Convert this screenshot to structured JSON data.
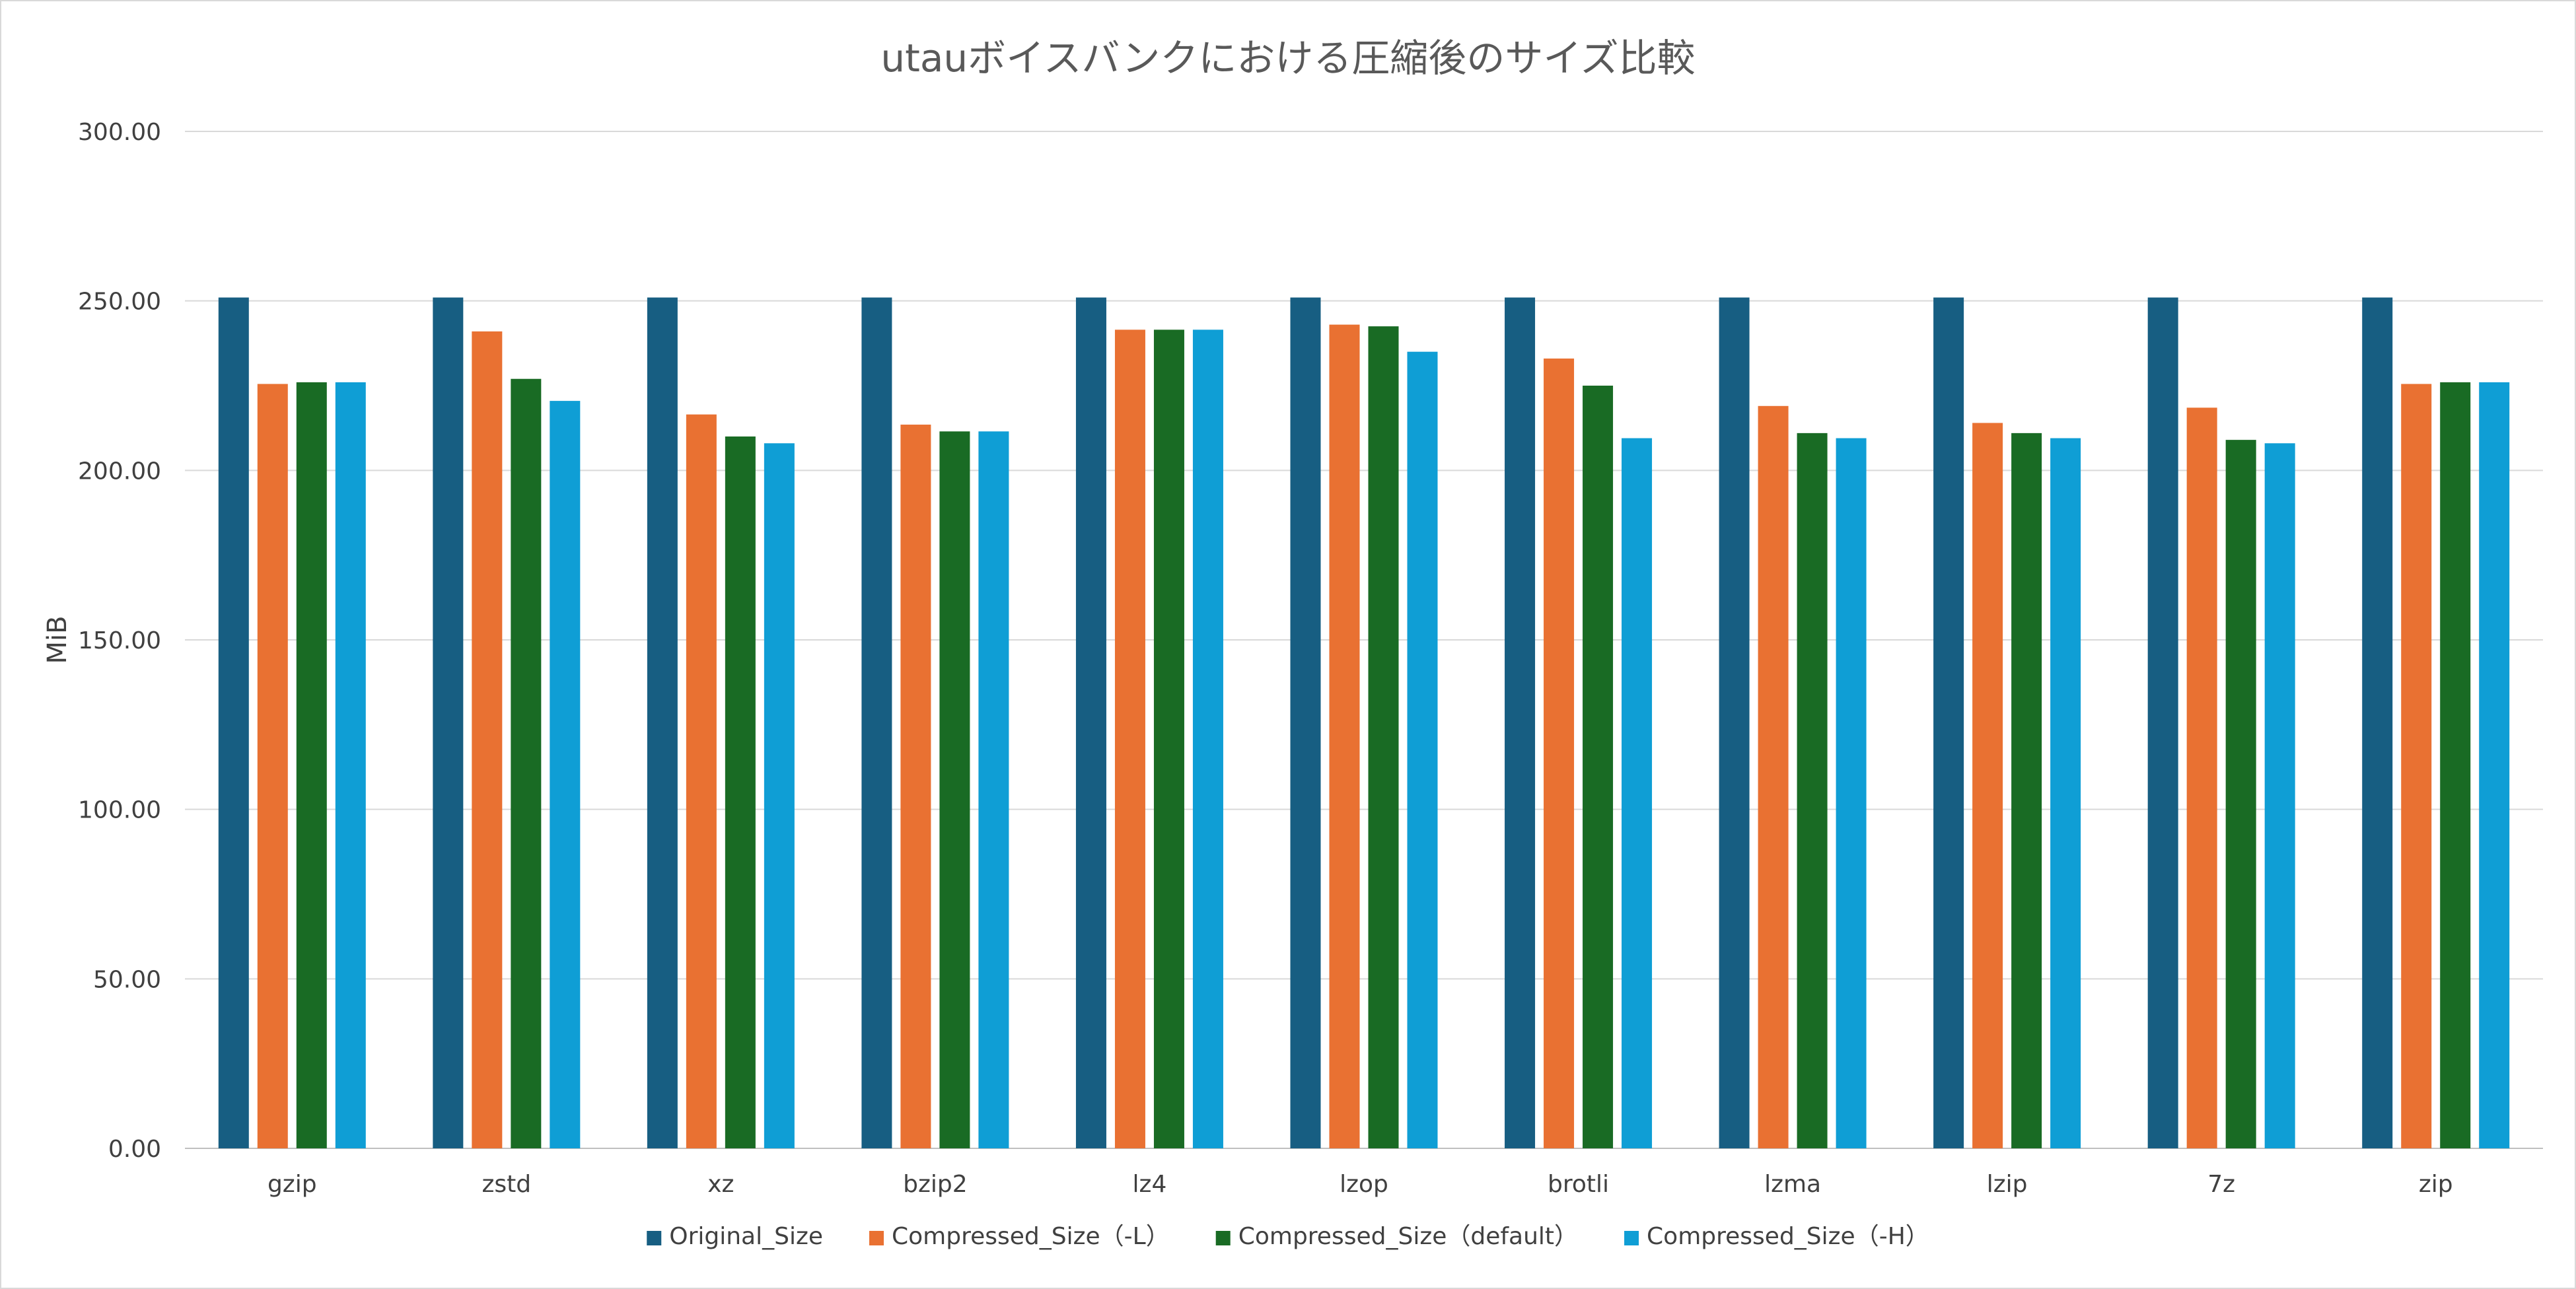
{
  "chart_data": {
    "type": "bar",
    "title": "utauボイスバンクにおける圧縮後のサイズ比較",
    "xlabel": "",
    "ylabel": "MiB",
    "ylim": [
      0,
      300
    ],
    "y_ticks": [
      "0.00",
      "50.00",
      "100.00",
      "150.00",
      "200.00",
      "250.00",
      "300.00"
    ],
    "grid": true,
    "legend_position": "bottom",
    "categories": [
      "gzip",
      "zstd",
      "xz",
      "bzip2",
      "lz4",
      "lzop",
      "brotli",
      "lzma",
      "lzip",
      "7z",
      "zip"
    ],
    "series": [
      {
        "name": "Original_Size",
        "color": "#175e82",
        "values": [
          251,
          251,
          251,
          251,
          251,
          251,
          251,
          251,
          251,
          251,
          251
        ]
      },
      {
        "name": "Compressed_Size（-L）",
        "color": "#e97132",
        "values": [
          225.5,
          241,
          216.5,
          213.5,
          241.5,
          243,
          233,
          219,
          214,
          218.5,
          225.5
        ]
      },
      {
        "name": "Compressed_Size（default）",
        "color": "#196b24",
        "values": [
          226,
          227,
          210,
          211.5,
          241.5,
          242.5,
          225,
          211,
          211,
          209,
          226
        ]
      },
      {
        "name": "Compressed_Size（-H）",
        "color": "#0f9ed5",
        "values": [
          226,
          220.5,
          208,
          211.5,
          241.5,
          235,
          209.5,
          209.5,
          209.5,
          208,
          226
        ]
      }
    ]
  }
}
